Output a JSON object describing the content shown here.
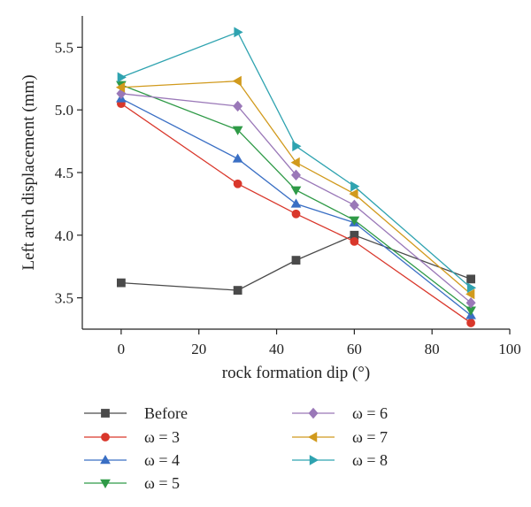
{
  "chart_data": {
    "type": "line",
    "xlabel": "rock formation dip (°)",
    "ylabel": "Left arch displacement (mm)",
    "xlim": [
      -10,
      100
    ],
    "ylim": [
      3.25,
      5.75
    ],
    "x_ticks": [
      0,
      20,
      40,
      60,
      80,
      100
    ],
    "y_ticks": [
      3.5,
      4.0,
      4.5,
      5.0,
      5.5
    ],
    "x_tick_labels": [
      "0",
      "20",
      "40",
      "60",
      "80",
      "100"
    ],
    "y_tick_labels": [
      "3.5",
      "4.0",
      "4.5",
      "5.0",
      "5.5"
    ],
    "grid": false,
    "legend_position": "below",
    "x": [
      0,
      30,
      45,
      60,
      90
    ],
    "series": [
      {
        "name": "Before",
        "values": [
          3.62,
          3.56,
          3.8,
          4.0,
          3.65
        ],
        "color": "#4a4a4a",
        "marker": "square"
      },
      {
        "name": "ω = 3",
        "values": [
          5.05,
          4.41,
          4.17,
          3.95,
          3.3
        ],
        "color": "#d9372b",
        "marker": "circle"
      },
      {
        "name": "ω = 4",
        "values": [
          5.09,
          4.61,
          4.25,
          4.1,
          3.36
        ],
        "color": "#3a6fc4",
        "marker": "triangle-up"
      },
      {
        "name": "ω = 5",
        "values": [
          5.2,
          4.84,
          4.36,
          4.12,
          3.4
        ],
        "color": "#2f9a47",
        "marker": "triangle-down"
      },
      {
        "name": "ω = 6",
        "values": [
          5.13,
          5.03,
          4.48,
          4.24,
          3.46
        ],
        "color": "#9a78b8",
        "marker": "diamond"
      },
      {
        "name": "ω = 7",
        "values": [
          5.18,
          5.23,
          4.58,
          4.33,
          3.53
        ],
        "color": "#d19a1d",
        "marker": "triangle-left"
      },
      {
        "name": "ω = 8",
        "values": [
          5.26,
          5.62,
          4.71,
          4.39,
          3.58
        ],
        "color": "#2fa3b0",
        "marker": "triangle-right"
      }
    ]
  }
}
